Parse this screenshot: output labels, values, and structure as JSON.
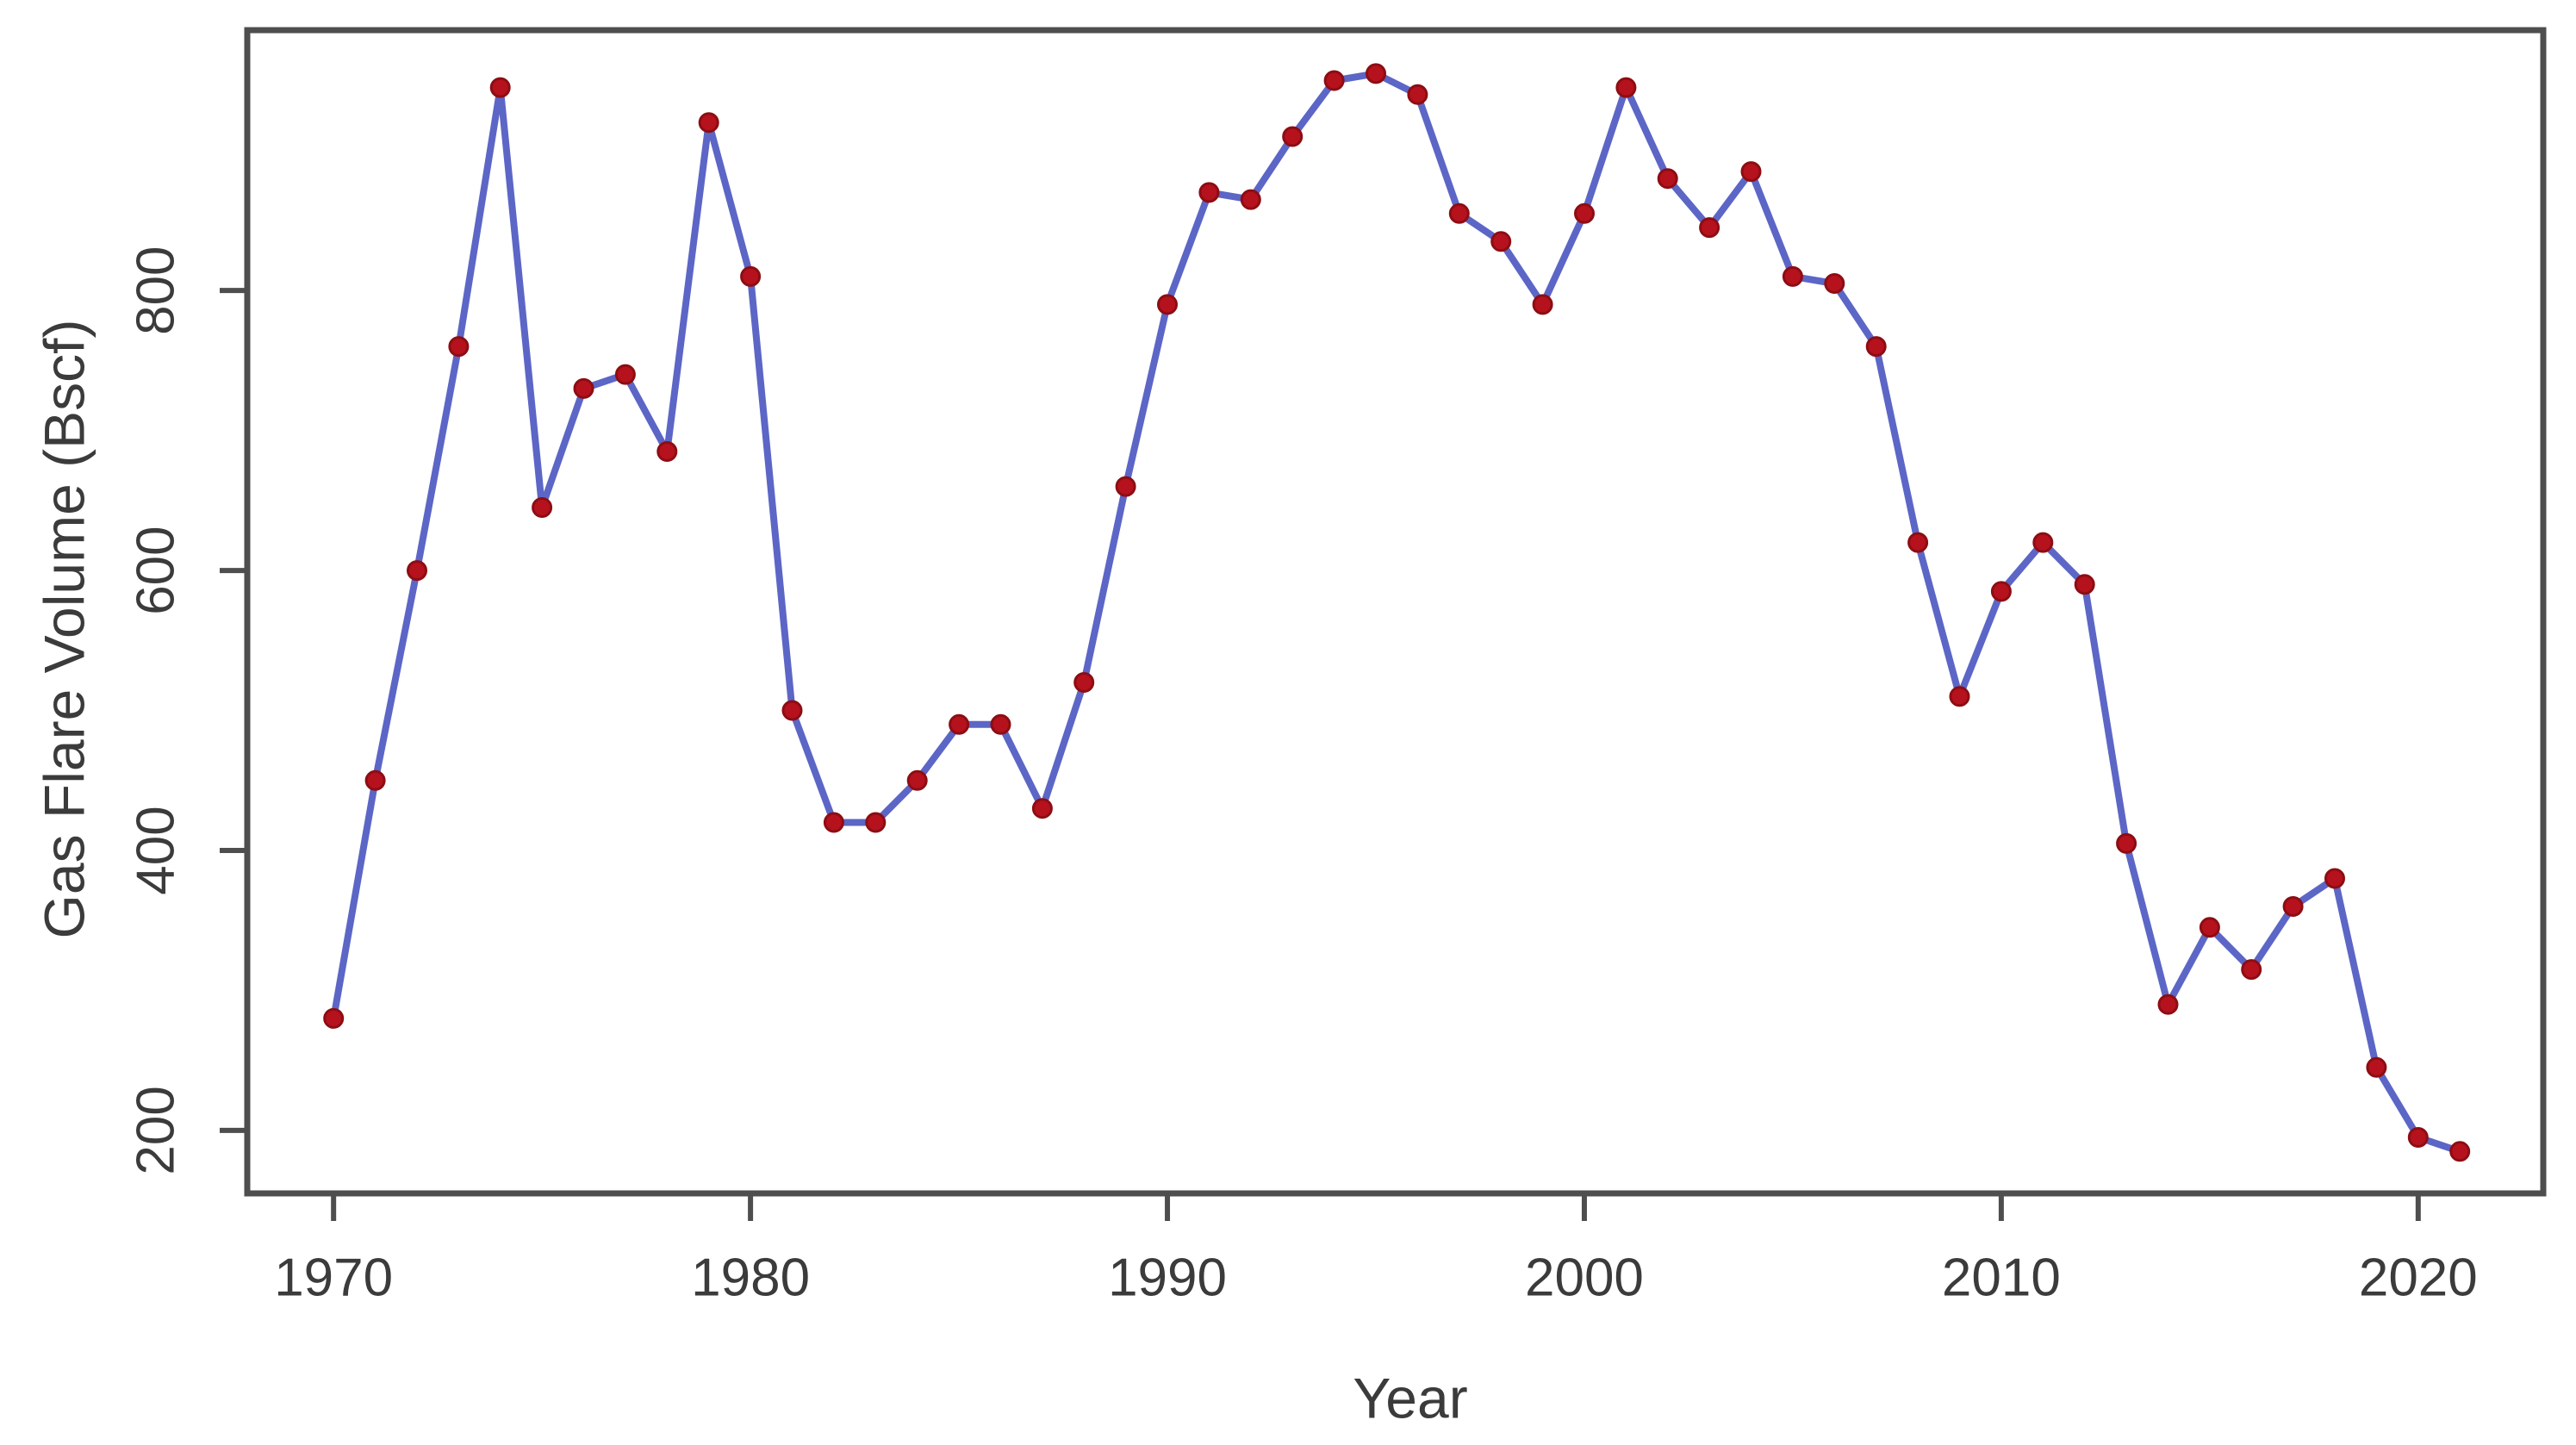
{
  "page": {
    "background": "#ffffff"
  },
  "chart_data": {
    "type": "line",
    "title": "",
    "xlabel": "Year",
    "ylabel": "Gas Flare Volume (Bscf)",
    "series_name": "Gas Flare Volume",
    "x": [
      1970,
      1971,
      1972,
      1973,
      1974,
      1975,
      1976,
      1977,
      1978,
      1979,
      1980,
      1981,
      1982,
      1983,
      1984,
      1985,
      1986,
      1987,
      1988,
      1989,
      1990,
      1991,
      1992,
      1993,
      1994,
      1995,
      1996,
      1997,
      1998,
      1999,
      2000,
      2001,
      2002,
      2003,
      2004,
      2005,
      2006,
      2007,
      2008,
      2009,
      2010,
      2011,
      2012,
      2013,
      2014,
      2015,
      2016,
      2017,
      2018,
      2019,
      2020,
      2021
    ],
    "values": [
      280,
      450,
      600,
      760,
      945,
      645,
      730,
      740,
      685,
      920,
      810,
      500,
      420,
      420,
      450,
      490,
      490,
      430,
      520,
      660,
      790,
      870,
      865,
      910,
      950,
      955,
      940,
      855,
      835,
      790,
      855,
      945,
      880,
      845,
      885,
      810,
      805,
      760,
      620,
      510,
      585,
      620,
      590,
      405,
      290,
      345,
      315,
      360,
      380,
      245,
      195,
      185
    ],
    "xticks": [
      1970,
      1980,
      1990,
      2000,
      2010,
      2020
    ],
    "yticks": [
      200,
      400,
      600,
      800
    ],
    "xlim": [
      1967.93,
      2023.0
    ],
    "ylim": [
      155,
      986
    ],
    "grid": false,
    "legend": "none",
    "marker": "filled-circle",
    "colors": {
      "line": "#5c66c6",
      "marker": "#b5121d",
      "marker_edge": "#8d0d13",
      "frame": "#4e4e4e",
      "text": "#3b3b3b"
    }
  }
}
